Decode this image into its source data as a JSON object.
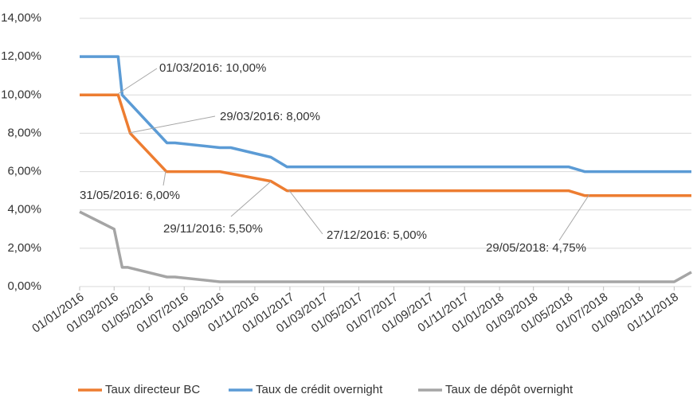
{
  "chart_data": {
    "type": "line",
    "xticks": [
      "01/01/2016",
      "01/03/2016",
      "01/05/2016",
      "01/07/2016",
      "01/09/2016",
      "01/11/2016",
      "01/01/2017",
      "01/03/2017",
      "01/05/2017",
      "01/07/2017",
      "01/09/2017",
      "01/11/2017",
      "01/01/2018",
      "01/03/2018",
      "01/05/2018",
      "01/07/2018",
      "01/09/2018",
      "01/11/2018"
    ],
    "xlim": [
      "01/01/2016",
      "01/12/2018"
    ],
    "ylim": [
      0,
      14
    ],
    "yticks": [
      {
        "value": 0,
        "label": "0,00%"
      },
      {
        "value": 2,
        "label": "2,00%"
      },
      {
        "value": 4,
        "label": "4,00%"
      },
      {
        "value": 6,
        "label": "6,00%"
      },
      {
        "value": 8,
        "label": "8,00%"
      },
      {
        "value": 10,
        "label": "10,00%"
      },
      {
        "value": 12,
        "label": "12,00%"
      },
      {
        "value": 14,
        "label": "14,00%"
      }
    ],
    "grid": true,
    "legend": "bottom",
    "series": [
      {
        "name": "Taux directeur BC",
        "color": "#ed7d31",
        "x": [
          "01/01/2016",
          "08/03/2016",
          "29/03/2016",
          "31/05/2016",
          "01/09/2016",
          "29/11/2016",
          "27/12/2016",
          "01/05/2018",
          "29/05/2018",
          "01/12/2018"
        ],
        "values": [
          10,
          10,
          8,
          6,
          6,
          5.5,
          5,
          5,
          4.75,
          4.75
        ]
      },
      {
        "name": "Taux de crédit overnight",
        "color": "#5b9bd5",
        "x": [
          "01/01/2016",
          "08/03/2016",
          "15/03/2016",
          "01/06/2016",
          "15/06/2016",
          "01/09/2016",
          "20/09/2016",
          "29/11/2016",
          "27/12/2016",
          "01/05/2018",
          "29/05/2018",
          "01/12/2018"
        ],
        "values": [
          12,
          12,
          10,
          7.5,
          7.5,
          7.25,
          7.25,
          6.75,
          6.25,
          6.25,
          6,
          6
        ]
      },
      {
        "name": "Taux de dépôt overnight",
        "color": "#a5a5a5",
        "x": [
          "01/01/2016",
          "01/03/2016",
          "15/03/2016",
          "25/03/2016",
          "01/06/2016",
          "15/06/2016",
          "01/09/2016",
          "01/11/2018",
          "01/12/2018"
        ],
        "values": [
          3.9,
          3,
          1,
          1,
          0.5,
          0.5,
          0.25,
          0.25,
          0.75
        ]
      }
    ],
    "annotations": [
      "01/03/2016: 10,00%",
      "29/03/2016: 8,00%",
      "31/05/2016: 6,00%",
      "29/11/2016: 5,50%",
      "27/12/2016: 5,00%",
      "29/05/2018: 4,75%"
    ]
  }
}
